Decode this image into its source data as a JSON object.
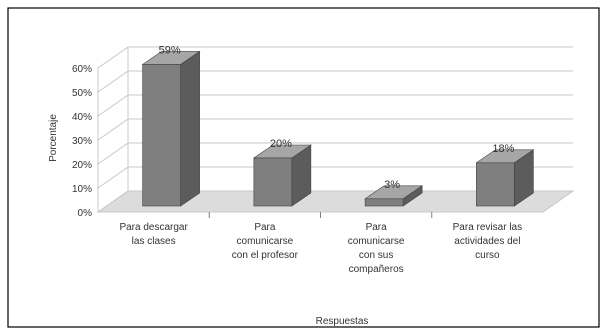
{
  "chart_data": {
    "type": "bar",
    "style": "3d-column",
    "categories": [
      [
        "Para descargar",
        "las clases"
      ],
      [
        "Para",
        "comunicarse",
        "con el profesor"
      ],
      [
        "Para",
        "comunicarse",
        "con sus",
        "compañeros"
      ],
      [
        "Para revisar las",
        "actividades del",
        "curso"
      ]
    ],
    "values": [
      59,
      20,
      3,
      18
    ],
    "data_labels": [
      "59%",
      "20%",
      "3%",
      "18%"
    ],
    "y_ticks": [
      "0%",
      "10%",
      "20%",
      "30%",
      "40%",
      "50%",
      "60%"
    ],
    "ylim": [
      0,
      60
    ],
    "xlabel": "Respuestas",
    "ylabel": "Porcentaje",
    "grid": true,
    "legend": "none",
    "colors": {
      "bar_front": "#7f7f7f",
      "bar_side": "#5c5c5c",
      "bar_top": "#a6a6a6",
      "grid": "#c8c8c8",
      "floor": "#dcdcdc",
      "frame": "#000000",
      "text": "#333333"
    }
  }
}
